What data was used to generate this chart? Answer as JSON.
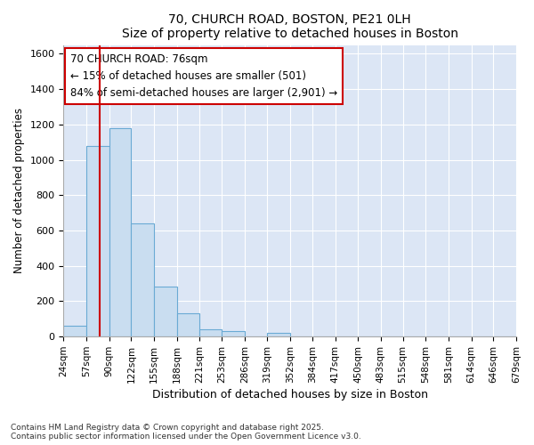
{
  "title": "70, CHURCH ROAD, BOSTON, PE21 0LH",
  "subtitle": "Size of property relative to detached houses in Boston",
  "xlabel": "Distribution of detached houses by size in Boston",
  "ylabel": "Number of detached properties",
  "bar_color": "#c9ddf0",
  "bar_edge_color": "#6aaad4",
  "plot_bg_color": "#dce6f5",
  "fig_bg_color": "#ffffff",
  "grid_color": "#ffffff",
  "annotation_line1": "70 CHURCH ROAD: 76sqm",
  "annotation_line2": "← 15% of detached houses are smaller (501)",
  "annotation_line3": "84% of semi-detached houses are larger (2,901) →",
  "vline_x": 76,
  "vline_color": "#cc0000",
  "bins": [
    24,
    57,
    90,
    122,
    155,
    188,
    221,
    253,
    286,
    319,
    352,
    384,
    417,
    450,
    483,
    515,
    548,
    581,
    614,
    646,
    679
  ],
  "bar_heights": [
    60,
    1080,
    1180,
    640,
    285,
    130,
    40,
    30,
    0,
    20,
    0,
    0,
    0,
    0,
    0,
    0,
    0,
    0,
    0,
    0
  ],
  "ylim": [
    0,
    1650
  ],
  "yticks": [
    0,
    200,
    400,
    600,
    800,
    1000,
    1200,
    1400,
    1600
  ],
  "footer": "Contains HM Land Registry data © Crown copyright and database right 2025.\nContains public sector information licensed under the Open Government Licence v3.0.",
  "tick_labels": [
    "24sqm",
    "57sqm",
    "90sqm",
    "122sqm",
    "155sqm",
    "188sqm",
    "221sqm",
    "253sqm",
    "286sqm",
    "319sqm",
    "352sqm",
    "384sqm",
    "417sqm",
    "450sqm",
    "483sqm",
    "515sqm",
    "548sqm",
    "581sqm",
    "614sqm",
    "646sqm",
    "679sqm"
  ]
}
